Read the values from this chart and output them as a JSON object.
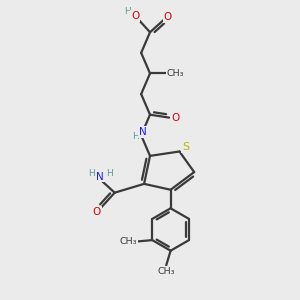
{
  "bg_color": "#ebebeb",
  "bond_color": "#3a3a3a",
  "S_color": "#b8b800",
  "N_color": "#1a1aff",
  "O_color": "#dd0000",
  "H_color": "#5a9a9a",
  "line_width": 1.6,
  "figsize": [
    3.0,
    3.0
  ],
  "dpi": 100,
  "xlim": [
    0,
    10
  ],
  "ylim": [
    0,
    10
  ]
}
